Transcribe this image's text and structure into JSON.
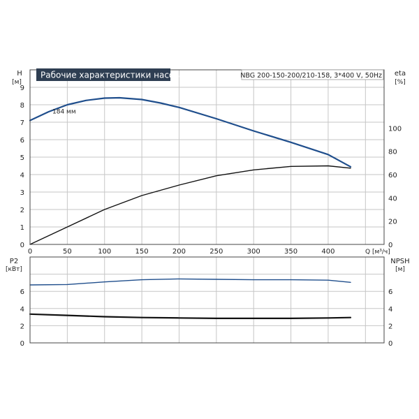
{
  "chart_data": [
    {
      "id": "top",
      "type": "line",
      "title": "Рабочие характеристики насоса",
      "subtitle": "NBG 200-150-200/210-158, 3*400 V, 50Hz",
      "ylabel_left": {
        "name": "H",
        "unit": "[м]"
      },
      "ylabel_right": {
        "name": "eta",
        "unit": "[%]"
      },
      "xlabel": "Q [м³/ч]",
      "xlim": [
        0,
        450
      ],
      "ylim_left": [
        0,
        10
      ],
      "ylim_right": [
        0,
        150
      ],
      "x_ticks": [
        "0",
        "50",
        "100",
        "150",
        "200",
        "250",
        "300",
        "350",
        "400"
      ],
      "y_ticks_left": [
        "0",
        "1",
        "2",
        "3",
        "4",
        "5",
        "6",
        "7",
        "8",
        "9"
      ],
      "y_ticks_right": [
        "0",
        "20",
        "40",
        "60",
        "80",
        "100"
      ],
      "grid": true,
      "annotations": [
        {
          "text": "184 мм",
          "x": 30,
          "y": 7.5
        }
      ],
      "series": [
        {
          "axis": "left",
          "color": "#1f4e8c",
          "x": [
            0,
            25,
            50,
            75,
            100,
            120,
            150,
            175,
            200,
            250,
            300,
            350,
            400,
            430
          ],
          "y": [
            7.1,
            7.6,
            8.0,
            8.25,
            8.38,
            8.4,
            8.3,
            8.1,
            7.85,
            7.2,
            6.5,
            5.85,
            5.15,
            4.45
          ]
        },
        {
          "axis": "right",
          "color": "#111111",
          "x": [
            0,
            50,
            100,
            150,
            200,
            250,
            300,
            350,
            400,
            430
          ],
          "y": [
            0,
            15,
            30,
            42,
            51,
            59,
            64,
            67,
            67.5,
            65.5
          ]
        }
      ]
    },
    {
      "id": "bottom",
      "type": "line",
      "ylabel_left": {
        "name": "P2",
        "unit": "[кВт]"
      },
      "ylabel_right": {
        "name": "NPSH",
        "unit": "[м]"
      },
      "xlim": [
        0,
        450
      ],
      "ylim_left": [
        0,
        10
      ],
      "ylim_right": [
        0,
        10
      ],
      "y_ticks_left": [
        "0",
        "2",
        "4",
        "6"
      ],
      "y_ticks_right": [
        "0",
        "2",
        "4",
        "6"
      ],
      "grid": true,
      "series": [
        {
          "axis": "left",
          "color": "#1f4e8c",
          "x": [
            0,
            50,
            100,
            150,
            200,
            250,
            300,
            350,
            400,
            430
          ],
          "y": [
            6.75,
            6.8,
            7.1,
            7.35,
            7.45,
            7.4,
            7.35,
            7.35,
            7.3,
            7.05
          ]
        },
        {
          "axis": "right",
          "color": "#111111",
          "x": [
            0,
            50,
            100,
            150,
            200,
            250,
            300,
            350,
            400,
            430
          ],
          "y": [
            3.35,
            3.2,
            3.05,
            2.95,
            2.9,
            2.85,
            2.85,
            2.85,
            2.9,
            2.95
          ]
        }
      ]
    }
  ]
}
